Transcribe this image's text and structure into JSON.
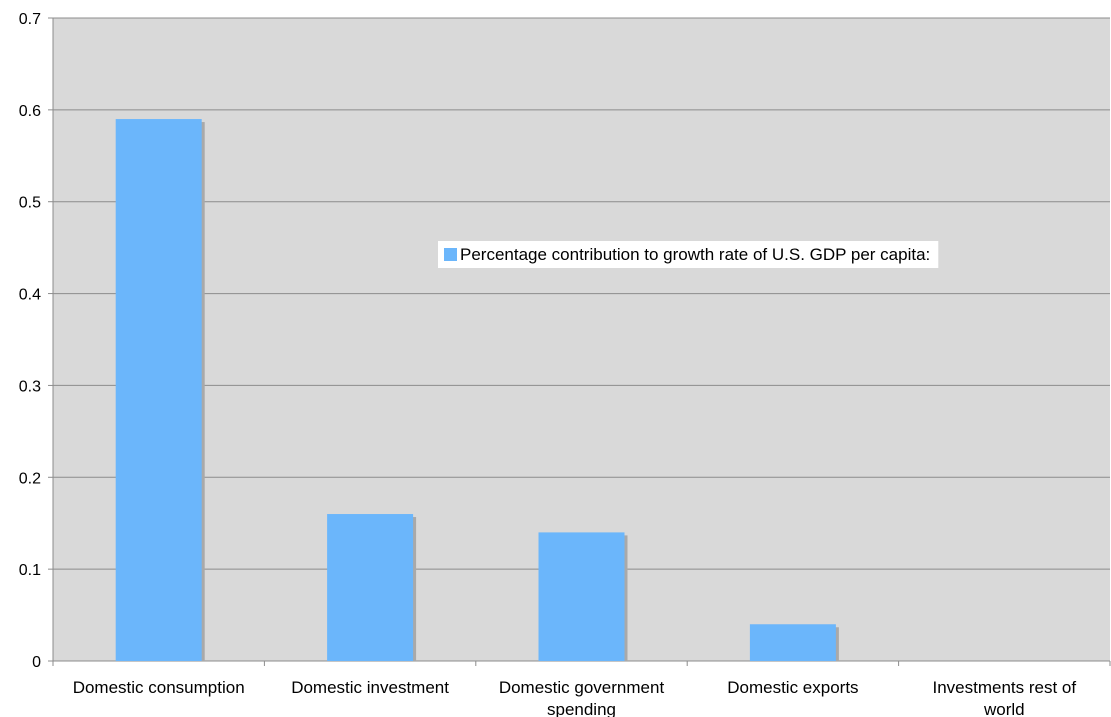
{
  "chart_data": {
    "type": "bar",
    "categories": [
      [
        "Domestic consumption"
      ],
      [
        "Domestic investment"
      ],
      [
        "Domestic government",
        "spending"
      ],
      [
        "Domestic exports"
      ],
      [
        "Investments rest of",
        "world"
      ]
    ],
    "series": [
      {
        "name": "Percentage contribution to growth rate of U.S. GDP per capita:",
        "values": [
          0.59,
          0.16,
          0.14,
          0.04,
          0
        ]
      }
    ],
    "ylim": [
      0,
      0.7
    ],
    "yticks": [
      "0",
      "0.1",
      "0.2",
      "0.3",
      "0.4",
      "0.5",
      "0.6",
      "0.7"
    ],
    "grid": true,
    "legend_placement": "center-right",
    "colors": {
      "bar": "#6bb6fb",
      "bar_shadow": "#a9a9a9",
      "plot_background": "#d9d9d9",
      "gridline": "#8c8c8c"
    }
  }
}
